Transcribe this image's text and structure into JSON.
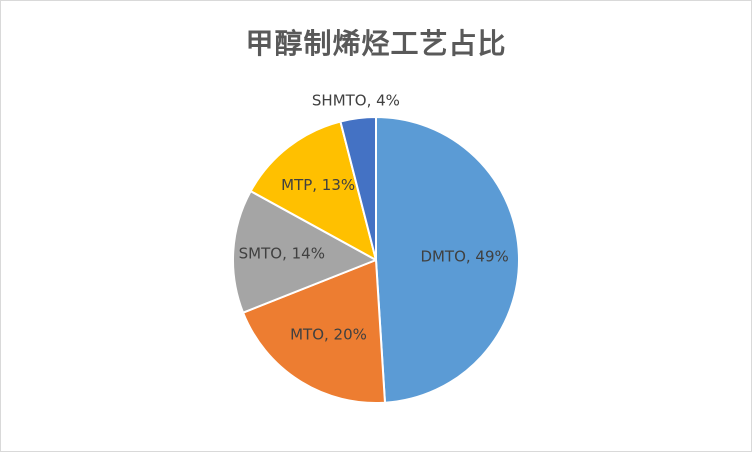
{
  "chart_data": {
    "type": "pie",
    "title": "甲醇制烯烃工艺占比",
    "slices": [
      {
        "name": "DMTO",
        "value": 49,
        "label": "DMTO, 49%",
        "color": "#5b9bd5"
      },
      {
        "name": "MTO",
        "value": 20,
        "label": "MTO, 20%",
        "color": "#ed7d31"
      },
      {
        "name": "SMTO",
        "value": 14,
        "label": "SMTO, 14%",
        "color": "#a5a5a5"
      },
      {
        "name": "MTP",
        "value": 13,
        "label": "MTP, 13%",
        "color": "#ffc000"
      },
      {
        "name": "SHMTO",
        "value": 4,
        "label": "SHMTO, 4%",
        "color": "#4472c4"
      }
    ],
    "legend": false
  }
}
